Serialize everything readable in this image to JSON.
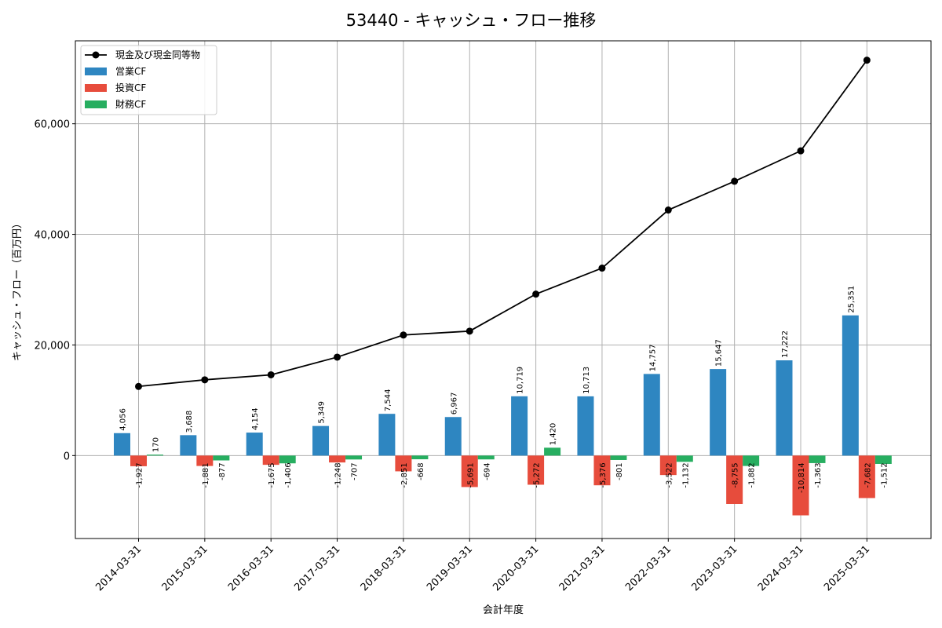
{
  "chart_data": {
    "type": "bar",
    "title": "53440 - キャッシュ・フロー推移",
    "xlabel": "会計年度",
    "ylabel": "キャッシュ・フロー（百万円）",
    "categories": [
      "2014-03-31",
      "2015-03-31",
      "2016-03-31",
      "2017-03-31",
      "2018-03-31",
      "2019-03-31",
      "2020-03-31",
      "2021-03-31",
      "2022-03-31",
      "2023-03-31",
      "2024-03-31",
      "2025-03-31"
    ],
    "ylim": [
      -15000,
      75000
    ],
    "yticks": [
      0,
      20000,
      40000,
      60000
    ],
    "ytick_labels": [
      "0",
      "20,000",
      "40,000",
      "60,000"
    ],
    "grid": true,
    "legend_position": "top-left",
    "series": [
      {
        "name": "営業CF",
        "kind": "bar",
        "color": "#2e86c1",
        "values": [
          4056,
          3688,
          4154,
          5349,
          7544,
          6967,
          10719,
          10713,
          14757,
          15647,
          17222,
          25351
        ],
        "labels": [
          "4,056",
          "3,688",
          "4,154",
          "5,349",
          "7,544",
          "6,967",
          "10,719",
          "10,713",
          "14,757",
          "15,647",
          "17,222",
          "25,351"
        ]
      },
      {
        "name": "投資CF",
        "kind": "bar",
        "color": "#e74c3c",
        "values": [
          -1927,
          -1881,
          -1675,
          -1248,
          -2851,
          -5691,
          -5272,
          -5376,
          -3522,
          -8755,
          -10814,
          -7682
        ],
        "labels": [
          "-1,927",
          "-1,881",
          "-1,675",
          "-1,248",
          "-2,851",
          "-5,691",
          "-5,272",
          "-5,376",
          "-3,522",
          "-8,755",
          "-10,814",
          "-7,682"
        ]
      },
      {
        "name": "財務CF",
        "kind": "bar",
        "color": "#27ae60",
        "values": [
          170,
          -877,
          -1406,
          -707,
          -668,
          -694,
          1420,
          -801,
          -1132,
          -1882,
          -1363,
          -1512
        ],
        "labels": [
          "170",
          "-877",
          "-1,406",
          "-707",
          "-668",
          "-694",
          "1,420",
          "-801",
          "-1,132",
          "-1,882",
          "-1,363",
          "-1,512"
        ]
      },
      {
        "name": "現金及び現金同等物",
        "kind": "line",
        "color": "#000000",
        "values": [
          12500,
          13700,
          14600,
          17800,
          21800,
          22500,
          29200,
          33900,
          44400,
          49600,
          55100,
          71500
        ]
      }
    ]
  }
}
